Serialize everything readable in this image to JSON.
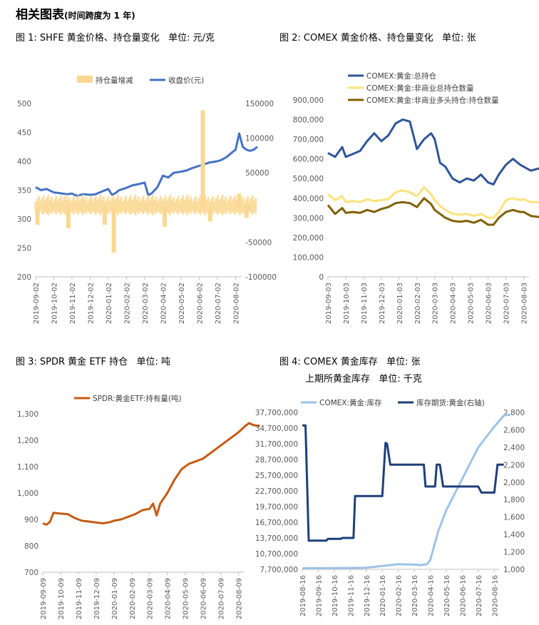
{
  "page": {
    "title": "相关图表",
    "title_note": "(时间跨度为 1 年)"
  },
  "chart_data": [
    {
      "type": "bar+line",
      "panel_title": "图 1: SHFE 黄金价格、持仓量变化   单位: 元/克",
      "legend": [
        "持仓量增减",
        "收盘价(元)"
      ],
      "left_ticks": [
        "500",
        "450",
        "400",
        "350",
        "300",
        "250",
        "200"
      ],
      "right_ticks": [
        "150000",
        "100000",
        "50000",
        "0",
        "-50000",
        "-100000"
      ],
      "x_ticks": [
        "2019-09-02",
        "2019-10-02",
        "2019-11-02",
        "2019-12-02",
        "2020-01-02",
        "2020-02-02",
        "2020-03-02",
        "2020-04-02",
        "2020-05-02",
        "2020-06-02",
        "2020-07-02",
        "2020-08-02"
      ],
      "left_range": [
        200,
        500
      ],
      "right_range": [
        -100000,
        150000
      ],
      "colors": {
        "bar": "#FAD893",
        "line": "#4472C4"
      },
      "series": [
        {
          "name": "收盘价(元)",
          "x": [
            0,
            0.3,
            0.6,
            1,
            1.3,
            1.7,
            2,
            2.3,
            2.6,
            3,
            3.3,
            3.6,
            4,
            4.2,
            4.4,
            4.6,
            4.8,
            5,
            5.3,
            5.6,
            6,
            6.2,
            6.4,
            6.7,
            7,
            7.3,
            7.6,
            8,
            8.3,
            8.6,
            9,
            9.3,
            9.6,
            10,
            10.2,
            10.5,
            10.8,
            11,
            11.2,
            11.4,
            11.6,
            11.8,
            12,
            12.2
          ],
          "values": [
            355,
            350,
            352,
            346,
            345,
            343,
            344,
            340,
            343,
            342,
            343,
            347,
            352,
            342,
            345,
            350,
            352,
            354,
            358,
            360,
            363,
            341,
            345,
            355,
            375,
            372,
            380,
            382,
            384,
            388,
            392,
            395,
            398,
            400,
            402,
            407,
            415,
            420,
            448,
            425,
            420,
            418,
            420,
            425
          ]
        },
        {
          "name": "持仓量增减",
          "x": [
            0.1,
            1.8,
            3.8,
            4.3,
            7.1,
            9.2,
            9.6,
            11.2,
            11.6
          ],
          "values": [
            -25000,
            -30000,
            -25000,
            -65000,
            -28000,
            140000,
            -20000,
            20000,
            -15000
          ]
        }
      ]
    },
    {
      "type": "line",
      "panel_title": "图 2: COMEX 黄金价格、持仓量变化   单位: 张",
      "legend": [
        "COMEX:黄金:总持仓",
        "COMEX:黄金:非商业总持仓数量",
        "COMEX:黄金:非商业多头持仓:持仓数量"
      ],
      "y_ticks": [
        "900,000",
        "800,000",
        "700,000",
        "600,000",
        "500,000",
        "400,000",
        "300,000",
        "200,000",
        "100,000",
        "0"
      ],
      "y_range": [
        0,
        900000
      ],
      "x_ticks": [
        "2019-09-03",
        "2019-10-03",
        "2019-11-03",
        "2019-12-03",
        "2020-01-03",
        "2020-02-03",
        "2020-03-03",
        "2020-04-03",
        "2020-05-03",
        "2020-06-03",
        "2020-07-03",
        "2020-08-03"
      ],
      "colors": [
        "#2F5597",
        "#FFE27A",
        "#7F6000"
      ],
      "series": [
        {
          "name": "COMEX:黄金:总持仓",
          "x": [
            0,
            0.4,
            0.8,
            1,
            1.4,
            1.8,
            2.2,
            2.6,
            3,
            3.4,
            3.8,
            4.2,
            4.6,
            5,
            5.4,
            5.8,
            6,
            6.3,
            6.6,
            7,
            7.4,
            7.8,
            8.2,
            8.6,
            9,
            9.3,
            9.6,
            10,
            10.4,
            10.8,
            11,
            11.4,
            11.8,
            12.2
          ],
          "values": [
            630000,
            610000,
            660000,
            610000,
            625000,
            640000,
            690000,
            730000,
            690000,
            720000,
            780000,
            800000,
            790000,
            650000,
            700000,
            730000,
            700000,
            580000,
            560000,
            500000,
            480000,
            500000,
            490000,
            520000,
            480000,
            470000,
            520000,
            570000,
            600000,
            570000,
            560000,
            540000,
            550000,
            550000
          ]
        },
        {
          "name": "COMEX:黄金:非商业总持仓数量",
          "x": [
            0,
            0.4,
            0.8,
            1,
            1.4,
            1.8,
            2.2,
            2.6,
            3,
            3.4,
            3.8,
            4.2,
            4.6,
            5,
            5.4,
            5.8,
            6,
            6.3,
            6.6,
            7,
            7.4,
            7.8,
            8.2,
            8.6,
            9,
            9.3,
            9.6,
            10,
            10.4,
            10.8,
            11,
            11.4,
            11.8,
            12.2
          ],
          "values": [
            420000,
            390000,
            410000,
            380000,
            385000,
            380000,
            395000,
            385000,
            390000,
            395000,
            430000,
            440000,
            430000,
            410000,
            455000,
            420000,
            390000,
            360000,
            340000,
            320000,
            315000,
            320000,
            310000,
            320000,
            300000,
            300000,
            330000,
            390000,
            400000,
            390000,
            395000,
            380000,
            380000,
            380000
          ]
        },
        {
          "name": "COMEX:黄金:非商业多头持仓:持仓数量",
          "x": [
            0,
            0.4,
            0.8,
            1,
            1.4,
            1.8,
            2.2,
            2.6,
            3,
            3.4,
            3.8,
            4.2,
            4.6,
            5,
            5.4,
            5.8,
            6,
            6.3,
            6.6,
            7,
            7.4,
            7.8,
            8.2,
            8.6,
            9,
            9.3,
            9.6,
            10,
            10.4,
            10.8,
            11,
            11.4,
            11.8,
            12.2
          ],
          "values": [
            365000,
            320000,
            350000,
            325000,
            330000,
            325000,
            340000,
            330000,
            345000,
            355000,
            375000,
            380000,
            375000,
            355000,
            400000,
            370000,
            340000,
            320000,
            300000,
            285000,
            280000,
            285000,
            275000,
            290000,
            265000,
            265000,
            300000,
            330000,
            340000,
            330000,
            330000,
            310000,
            305000,
            305000
          ]
        }
      ]
    },
    {
      "type": "line",
      "panel_title": "图 3: SPDR 黄金 ETF 持仓   单位: 吨",
      "legend": [
        "SPDR:黄金ETF:持有量(吨)"
      ],
      "y_ticks": [
        "1,300",
        "1,200",
        "1,100",
        "1,000",
        "900",
        "800",
        "700"
      ],
      "y_range": [
        700,
        1300
      ],
      "x_ticks": [
        "2019-09-09",
        "2019-10-09",
        "2019-11-09",
        "2019-12-09",
        "2020-01-09",
        "2020-02-09",
        "2020-03-09",
        "2020-04-09",
        "2020-05-09",
        "2020-06-09",
        "2020-07-09",
        "2020-08-09"
      ],
      "colors": [
        "#C55A11"
      ],
      "series": [
        {
          "name": "SPDR:黄金ETF:持有量(吨)",
          "x": [
            0,
            0.2,
            0.4,
            0.6,
            1,
            1.4,
            1.8,
            2.2,
            2.6,
            3,
            3.4,
            3.8,
            4,
            4.4,
            4.8,
            5.2,
            5.6,
            6,
            6.2,
            6.4,
            6.6,
            7,
            7.4,
            7.8,
            8.2,
            8.6,
            9,
            9.4,
            9.8,
            10.2,
            10.6,
            11,
            11.4,
            11.6,
            11.8,
            12,
            12.2
          ],
          "values": [
            885,
            880,
            890,
            925,
            922,
            920,
            905,
            895,
            892,
            888,
            885,
            890,
            895,
            900,
            910,
            920,
            935,
            940,
            960,
            915,
            960,
            1000,
            1050,
            1090,
            1110,
            1120,
            1130,
            1150,
            1170,
            1190,
            1210,
            1230,
            1255,
            1265,
            1258,
            1255,
            1255
          ]
        }
      ]
    },
    {
      "type": "line",
      "panel_title": "图 4: COMEX 黄金库存   单位: 张",
      "panel_subtitle": "上期所黄金库存   单位: 千克",
      "legend": [
        "COMEX:黄金:库存",
        "库存期货:黄金(右轴)"
      ],
      "left_ticks": [
        "37,700,000",
        "34,700,000",
        "31,700,000",
        "28,700,000",
        "25,700,000",
        "22,700,000",
        "19,700,000",
        "16,700,000",
        "13,700,000",
        "10,700,000",
        "7,700,000"
      ],
      "right_ticks": [
        "2,800",
        "2,600",
        "2,400",
        "2,200",
        "2,000",
        "1,800",
        "1,600",
        "1,400",
        "1,200",
        "1,000"
      ],
      "left_range": [
        7700000,
        37700000
      ],
      "right_range": [
        1000,
        2800
      ],
      "x_ticks": [
        "2019-08-16",
        "2019-09-16",
        "2019-10-16",
        "2019-11-16",
        "2019-12-16",
        "2020-01-16",
        "2020-02-16",
        "2020-03-16",
        "2020-04-16",
        "2020-05-16",
        "2020-06-16",
        "2020-07-16",
        "2020-08-16"
      ],
      "colors": [
        "#9DC3E6",
        "#1F3F7A"
      ],
      "series": [
        {
          "name": "COMEX:黄金:库存",
          "x": [
            0,
            2,
            4,
            6,
            7,
            7.4,
            7.6,
            7.8,
            8,
            8.5,
            9,
            9.5,
            10,
            10.5,
            11,
            11.5,
            12,
            12.3,
            12.6,
            12.9
          ],
          "values": [
            7900000,
            7950000,
            8000000,
            8700000,
            8600000,
            8500000,
            8600000,
            8700000,
            9500000,
            15000000,
            19000000,
            22000000,
            25000000,
            28000000,
            31000000,
            33000000,
            35000000,
            36000000,
            37100000,
            37300000
          ]
        },
        {
          "name": "库存期货:黄金(右轴)",
          "x": [
            0,
            0.2,
            0.4,
            1.5,
            1.6,
            2.4,
            2.5,
            3.2,
            3.3,
            5,
            5.2,
            5.3,
            5.5,
            6,
            6.2,
            7,
            7.1,
            7.6,
            7.7,
            8.3,
            8.4,
            8.6,
            8.8,
            9,
            9.3,
            10.1,
            10.2,
            11,
            11.2,
            12,
            12.2,
            12.6
          ],
          "values": [
            2650,
            2650,
            1330,
            1330,
            1350,
            1350,
            1360,
            1360,
            1840,
            1840,
            2450,
            2440,
            2200,
            2200,
            2200,
            2200,
            2200,
            2200,
            1950,
            1950,
            2200,
            2200,
            1950,
            1950,
            1950,
            1950,
            1950,
            1950,
            1880,
            1880,
            2200,
            2200
          ]
        }
      ]
    }
  ]
}
